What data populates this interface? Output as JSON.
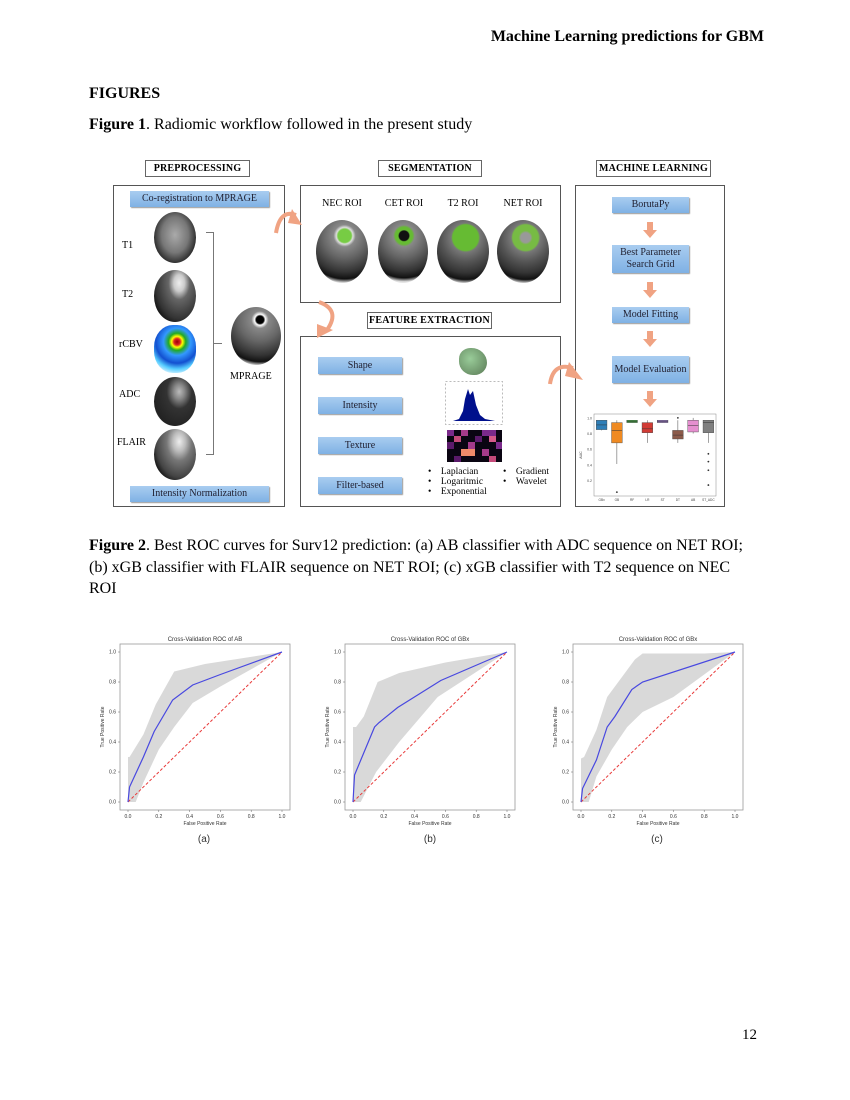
{
  "header": {
    "running_title": "Machine Learning predictions for GBM"
  },
  "section": {
    "title": "FIGURES"
  },
  "figure1": {
    "label": "Figure 1",
    "caption": ". Radiomic workflow followed in the present study",
    "preprocessing": {
      "heading": "PREPROCESSING",
      "coreg": "Co-registration to MPRAGE",
      "sequences": [
        "T1",
        "T2",
        "rCBV",
        "ADC",
        "FLAIR"
      ],
      "reference": "MPRAGE",
      "normalization": "Intensity Normalization"
    },
    "segmentation": {
      "heading": "SEGMENTATION",
      "rois": [
        "NEC ROI",
        "CET ROI",
        "T2 ROI",
        "NET ROI"
      ]
    },
    "feature_extraction": {
      "heading": "FEATURE EXTRACTION",
      "classes": [
        "Shape",
        "Intensity",
        "Texture",
        "Filter-based"
      ],
      "filters_left": [
        "Laplacian",
        "Logaritmic",
        "Exponential"
      ],
      "filters_right": [
        "Gradient",
        "Wavelet"
      ]
    },
    "machine_learning": {
      "heading": "MACHINE LEARNING",
      "steps": [
        "BorutaPy",
        "Best Parameter Search Grid",
        "Model Fitting",
        "Model Evaluation"
      ]
    },
    "colors": {
      "step_fill": "#8fbde9",
      "arrow": "#f0a383",
      "roi": "#6fbf3a"
    }
  },
  "figure2": {
    "label": "Figure 2",
    "caption": ". Best ROC curves for Surv12 prediction: (a) AB classifier with ADC sequence on NET ROI; (b) xGB classifier with FLAIR sequence on NET ROI; (c) xGB classifier with T2 sequence on NEC ROI"
  },
  "page_number": "12",
  "chart_data": [
    {
      "type": "line",
      "title": "Cross-Validation ROC of AB",
      "panel": "(a)",
      "xlabel": "False Positive Rate",
      "ylabel": "True Positive Rate",
      "xlim": [
        0,
        1
      ],
      "ylim": [
        0,
        1
      ],
      "xticks": [
        "0.0",
        "0.2",
        "0.4",
        "0.6",
        "0.8",
        "1.0"
      ],
      "yticks": [
        "0.0",
        "0.2",
        "0.4",
        "0.6",
        "0.8",
        "1.0"
      ],
      "mean_roc": [
        [
          0,
          0
        ],
        [
          0.01,
          0.1
        ],
        [
          0.1,
          0.3
        ],
        [
          0.17,
          0.47
        ],
        [
          0.29,
          0.68
        ],
        [
          0.42,
          0.78
        ],
        [
          0.6,
          0.85
        ],
        [
          1,
          1
        ]
      ],
      "band_upper": [
        [
          0,
          0.3
        ],
        [
          0.01,
          0.3
        ],
        [
          0.1,
          0.45
        ],
        [
          0.18,
          0.65
        ],
        [
          0.3,
          0.87
        ],
        [
          0.5,
          0.92
        ],
        [
          1,
          1
        ]
      ],
      "band_lower": [
        [
          0,
          0
        ],
        [
          0.05,
          0
        ],
        [
          0.1,
          0.13
        ],
        [
          0.2,
          0.35
        ],
        [
          0.3,
          0.5
        ],
        [
          0.42,
          0.66
        ],
        [
          0.6,
          0.77
        ],
        [
          1,
          1
        ]
      ],
      "chance": [
        [
          0,
          0
        ],
        [
          1,
          1
        ]
      ],
      "colors": {
        "mean": "#4848e0",
        "band": "#d9d9d9",
        "chance": "#e83a3a"
      }
    },
    {
      "type": "line",
      "title": "Cross-Validation ROC of GBx",
      "panel": "(b)",
      "xlabel": "False Positive Rate",
      "ylabel": "True Positive Rate",
      "xlim": [
        0,
        1
      ],
      "ylim": [
        0,
        1
      ],
      "xticks": [
        "0.0",
        "0.2",
        "0.4",
        "0.6",
        "0.8",
        "1.0"
      ],
      "yticks": [
        "0.0",
        "0.2",
        "0.4",
        "0.6",
        "0.8",
        "1.0"
      ],
      "mean_roc": [
        [
          0,
          0
        ],
        [
          0.01,
          0.18
        ],
        [
          0.14,
          0.5
        ],
        [
          0.17,
          0.53
        ],
        [
          0.29,
          0.63
        ],
        [
          0.57,
          0.81
        ],
        [
          1,
          1
        ]
      ],
      "band_upper": [
        [
          0,
          0.5
        ],
        [
          0.02,
          0.5
        ],
        [
          0.07,
          0.57
        ],
        [
          0.16,
          0.8
        ],
        [
          0.3,
          0.86
        ],
        [
          0.6,
          0.93
        ],
        [
          1,
          1
        ]
      ],
      "band_lower": [
        [
          0,
          0
        ],
        [
          0.05,
          0
        ],
        [
          0.15,
          0.2
        ],
        [
          0.3,
          0.4
        ],
        [
          0.55,
          0.7
        ],
        [
          1,
          1
        ]
      ],
      "chance": [
        [
          0,
          0
        ],
        [
          1,
          1
        ]
      ],
      "colors": {
        "mean": "#4848e0",
        "band": "#d9d9d9",
        "chance": "#e83a3a"
      }
    },
    {
      "type": "line",
      "title": "Cross-Validation ROC of GBx",
      "panel": "(c)",
      "xlabel": "False Positive Rate",
      "ylabel": "True Positive Rate",
      "xlim": [
        0,
        1
      ],
      "ylim": [
        0,
        1
      ],
      "xticks": [
        "0.0",
        "0.2",
        "0.4",
        "0.6",
        "0.8",
        "1.0"
      ],
      "yticks": [
        "0.0",
        "0.2",
        "0.4",
        "0.6",
        "0.8",
        "1.0"
      ],
      "mean_roc": [
        [
          0,
          0
        ],
        [
          0.01,
          0.09
        ],
        [
          0.1,
          0.28
        ],
        [
          0.17,
          0.5
        ],
        [
          0.22,
          0.57
        ],
        [
          0.33,
          0.75
        ],
        [
          0.4,
          0.8
        ],
        [
          1,
          1
        ]
      ],
      "band_upper": [
        [
          0,
          0.29
        ],
        [
          0.02,
          0.3
        ],
        [
          0.1,
          0.48
        ],
        [
          0.17,
          0.7
        ],
        [
          0.35,
          0.95
        ],
        [
          0.4,
          0.99
        ],
        [
          0.8,
          0.99
        ],
        [
          1,
          1
        ]
      ],
      "band_lower": [
        [
          0,
          0
        ],
        [
          0.05,
          0
        ],
        [
          0.1,
          0.17
        ],
        [
          0.2,
          0.35
        ],
        [
          0.3,
          0.5
        ],
        [
          0.4,
          0.6
        ],
        [
          0.6,
          0.7
        ],
        [
          1,
          1
        ]
      ],
      "chance": [
        [
          0,
          0
        ],
        [
          1,
          1
        ]
      ],
      "colors": {
        "mean": "#4848e0",
        "band": "#d9d9d9",
        "chance": "#e83a3a"
      }
    },
    {
      "type": "box",
      "ylabel": "AUC",
      "ylim": [
        0,
        1.05
      ],
      "yticks": [
        "0.2",
        "0.4",
        "0.6",
        "0.8",
        "1.0"
      ],
      "categories": [
        "GBx",
        "GB",
        "RF",
        "LR",
        "ST",
        "DT",
        "AB",
        "ST_ADC"
      ],
      "boxes": [
        {
          "q1": 0.85,
          "median": 0.91,
          "q3": 0.97,
          "min": 0.84,
          "max": 0.97,
          "outliers": [],
          "color": "#2f7fb8"
        },
        {
          "q1": 0.68,
          "median": 0.84,
          "q3": 0.94,
          "min": 0.41,
          "max": 0.97,
          "outliers": [
            0.05
          ],
          "color": "#ef8a22"
        },
        {
          "q1": 0.94,
          "median": 0.95,
          "q3": 0.97,
          "min": 0.94,
          "max": 0.97,
          "outliers": [],
          "color": "#3a9a3a"
        },
        {
          "q1": 0.81,
          "median": 0.86,
          "q3": 0.94,
          "min": 0.68,
          "max": 0.97,
          "outliers": [],
          "color": "#d13b35"
        },
        {
          "q1": 0.94,
          "median": 0.95,
          "q3": 0.97,
          "min": 0.94,
          "max": 0.97,
          "outliers": [],
          "color": "#8f6fbf"
        },
        {
          "q1": 0.73,
          "median": 0.78,
          "q3": 0.84,
          "min": 0.68,
          "max": 0.97,
          "outliers": [
            1.0
          ],
          "color": "#8b5a4a"
        },
        {
          "q1": 0.82,
          "median": 0.9,
          "q3": 0.97,
          "min": 0.8,
          "max": 1.0,
          "outliers": [],
          "color": "#e58fcf"
        },
        {
          "q1": 0.81,
          "median": 0.94,
          "q3": 0.97,
          "min": 0.68,
          "max": 0.97,
          "outliers": [
            0.54,
            0.44,
            0.33,
            0.14
          ],
          "color": "#7f7f7f"
        }
      ]
    }
  ]
}
